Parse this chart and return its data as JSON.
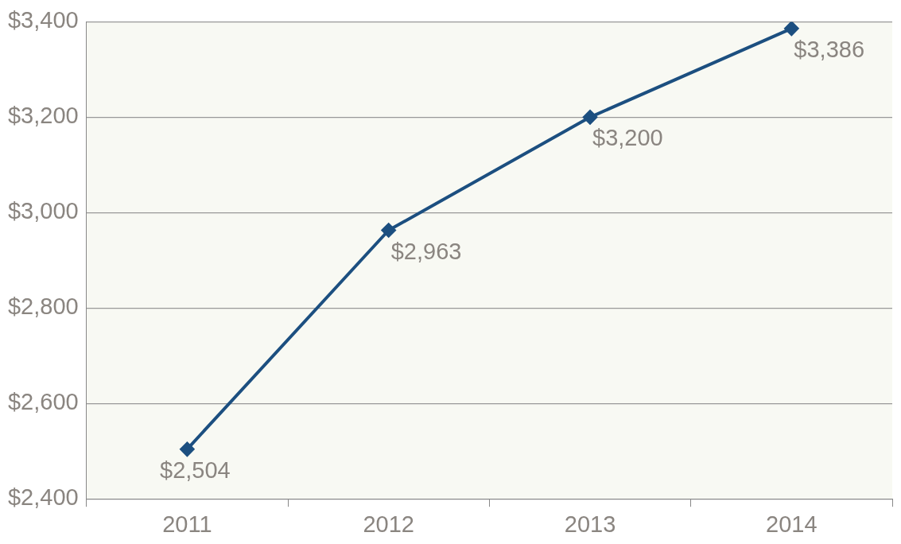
{
  "chart_data": {
    "type": "line",
    "categories": [
      "2011",
      "2012",
      "2013",
      "2014"
    ],
    "series": [
      {
        "color": "#1c4f80",
        "values": [
          2504,
          2963,
          3200,
          3386
        ],
        "value_labels": [
          "$2,504",
          "$2,963",
          "$3,200",
          "$3,386"
        ]
      }
    ],
    "ylim": [
      2400,
      3400
    ],
    "yticks": [
      {
        "value": 2400,
        "label": "$2,400"
      },
      {
        "value": 2600,
        "label": "$2,600"
      },
      {
        "value": 2800,
        "label": "$2,800"
      },
      {
        "value": 3000,
        "label": "$3,000"
      },
      {
        "value": 3200,
        "label": "$3,200"
      },
      {
        "value": 3400,
        "label": "$3,400"
      }
    ],
    "grid": "y",
    "legend": false,
    "marker": "diamond",
    "line_style": "solid"
  }
}
